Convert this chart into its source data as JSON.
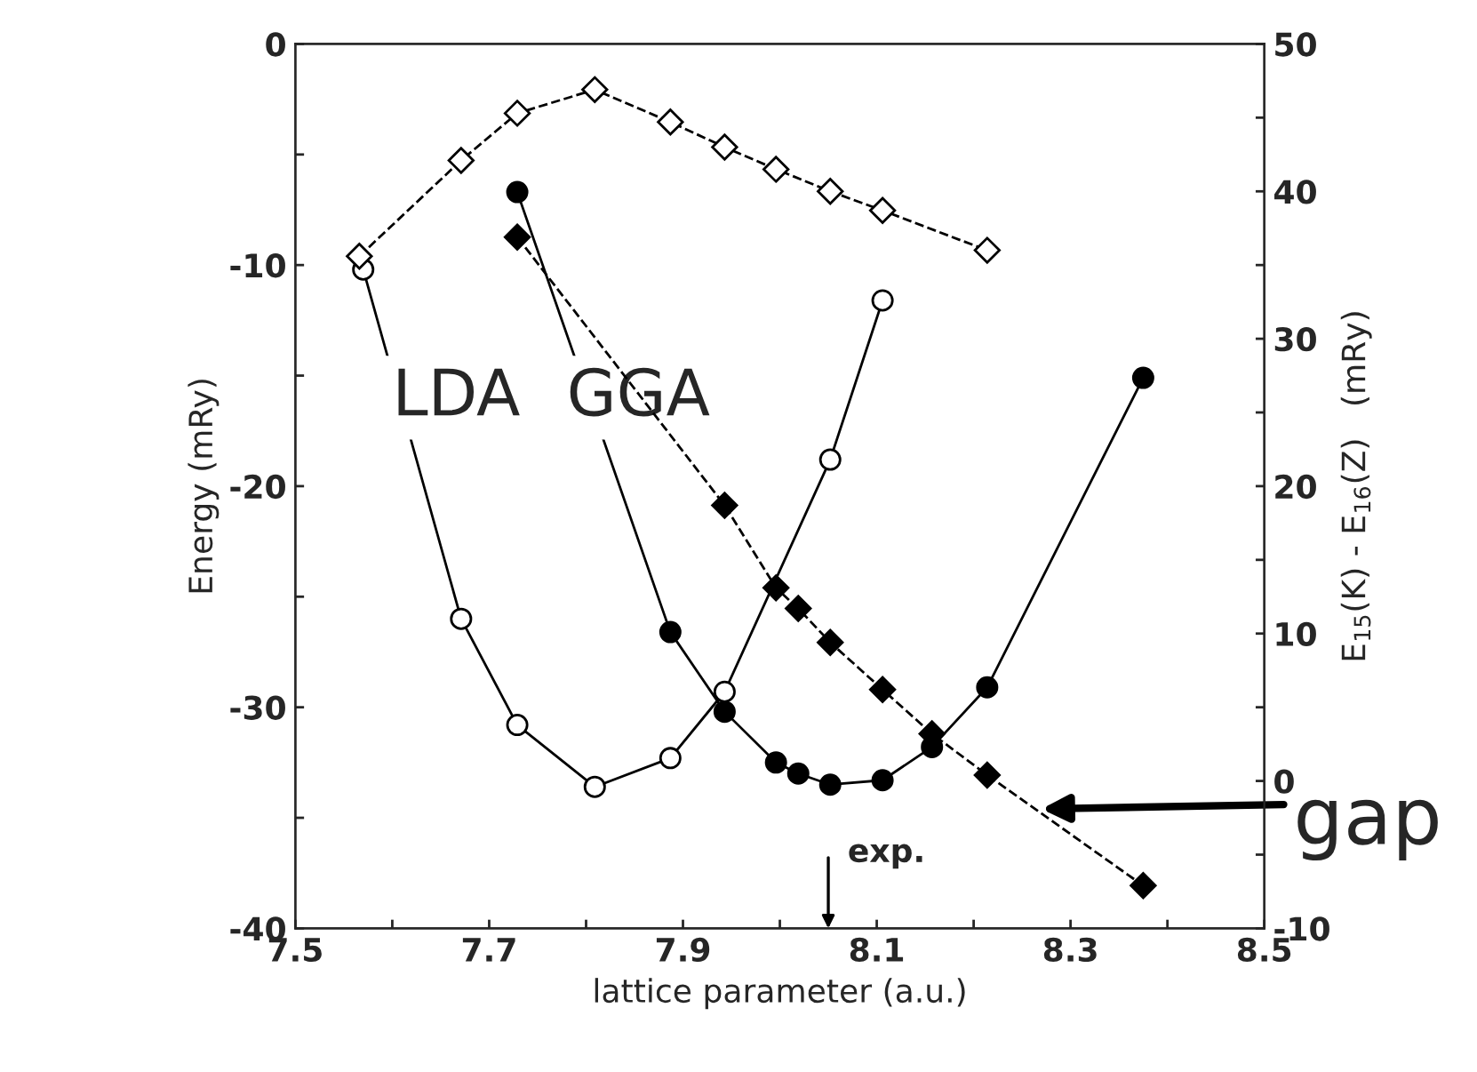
{
  "chart_data": {
    "type": "line",
    "xlabel": "lattice parameter (a.u.)",
    "ylabel": "Energy (mRy)",
    "y2label": "E$_{15}$(K) - E$_{16}$(Z)   (mRy)",
    "xlim": [
      7.5,
      8.5
    ],
    "ylim": [
      -40,
      0
    ],
    "y2lim": [
      -10,
      50
    ],
    "xticks": [
      7.5,
      {
        "value": 7.6,
        "label": null
      },
      7.7,
      {
        "value": 7.8,
        "label": null
      },
      7.9,
      {
        "value": 8.0,
        "label": null
      },
      8.1,
      {
        "value": 8.2,
        "label": null
      },
      8.3,
      {
        "value": 8.4,
        "label": null
      },
      8.5
    ],
    "yticks": [
      -40,
      {
        "value": -35,
        "label": null
      },
      -30,
      {
        "value": -25,
        "label": null
      },
      -20,
      {
        "value": -15,
        "label": null
      },
      -10,
      {
        "value": -5,
        "label": null
      },
      0
    ],
    "y2ticks": [
      -10,
      {
        "value": -5,
        "label": null
      },
      0,
      {
        "value": 5,
        "label": null
      },
      10,
      {
        "value": 15,
        "label": null
      },
      20,
      {
        "value": 25,
        "label": null
      },
      30,
      {
        "value": 35,
        "label": null
      },
      40,
      {
        "value": 45,
        "label": null
      },
      50
    ],
    "grid": false,
    "legend": false,
    "series": [
      {
        "color": "#ffffff",
        "marker": "circle",
        "line_style": "solid",
        "x": [
          7.57,
          7.671,
          7.729,
          7.809,
          7.887,
          7.943,
          8.052,
          8.106
        ],
        "values": [
          -10.2,
          -26.0,
          -30.8,
          -33.6,
          -32.3,
          -29.3,
          -18.8,
          -11.6
        ]
      },
      {
        "color": "#000000",
        "marker": "circle",
        "line_style": "solid",
        "x": [
          7.729,
          7.887,
          7.943,
          7.996,
          8.019,
          8.052,
          8.106,
          8.157,
          8.214,
          8.375
        ],
        "values": [
          -6.7,
          -26.6,
          -30.2,
          -32.5,
          -33.0,
          -33.5,
          -33.3,
          -31.8,
          -29.1,
          -15.1
        ]
      },
      {
        "color": "#ffffff",
        "marker": "diamond",
        "line_style": "dashed",
        "axis": "y2",
        "x": [
          7.566,
          7.671,
          7.729,
          7.809,
          7.887,
          7.943,
          7.996,
          8.052,
          8.106,
          8.214
        ],
        "values": [
          35.6,
          42.1,
          45.3,
          46.9,
          44.7,
          43.0,
          41.5,
          40.0,
          38.7,
          36.0
        ]
      },
      {
        "color": "#000000",
        "marker": "diamond",
        "line_style": "dashed",
        "axis": "y2",
        "x": [
          7.729,
          7.943,
          7.996,
          8.019,
          8.052,
          8.106,
          8.157,
          8.214,
          8.375
        ],
        "values": [
          36.9,
          18.7,
          13.1,
          11.7,
          9.4,
          6.2,
          3.2,
          0.4,
          -7.1
        ]
      }
    ],
    "annotations": [
      "LDA",
      "GGA",
      "exp.",
      "gap"
    ]
  }
}
